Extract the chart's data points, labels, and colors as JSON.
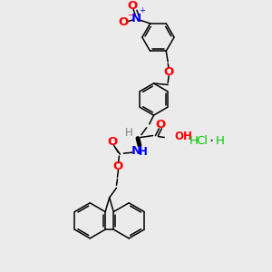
{
  "bg_color": "#ebebeb",
  "atom_colors": {
    "O": "#ff0000",
    "N": "#0000ff",
    "C": "#000000",
    "H": "#808080",
    "Cl": "#00cc00"
  },
  "bond_color": "#000000",
  "figsize": [
    3.0,
    3.0
  ],
  "dpi": 100
}
